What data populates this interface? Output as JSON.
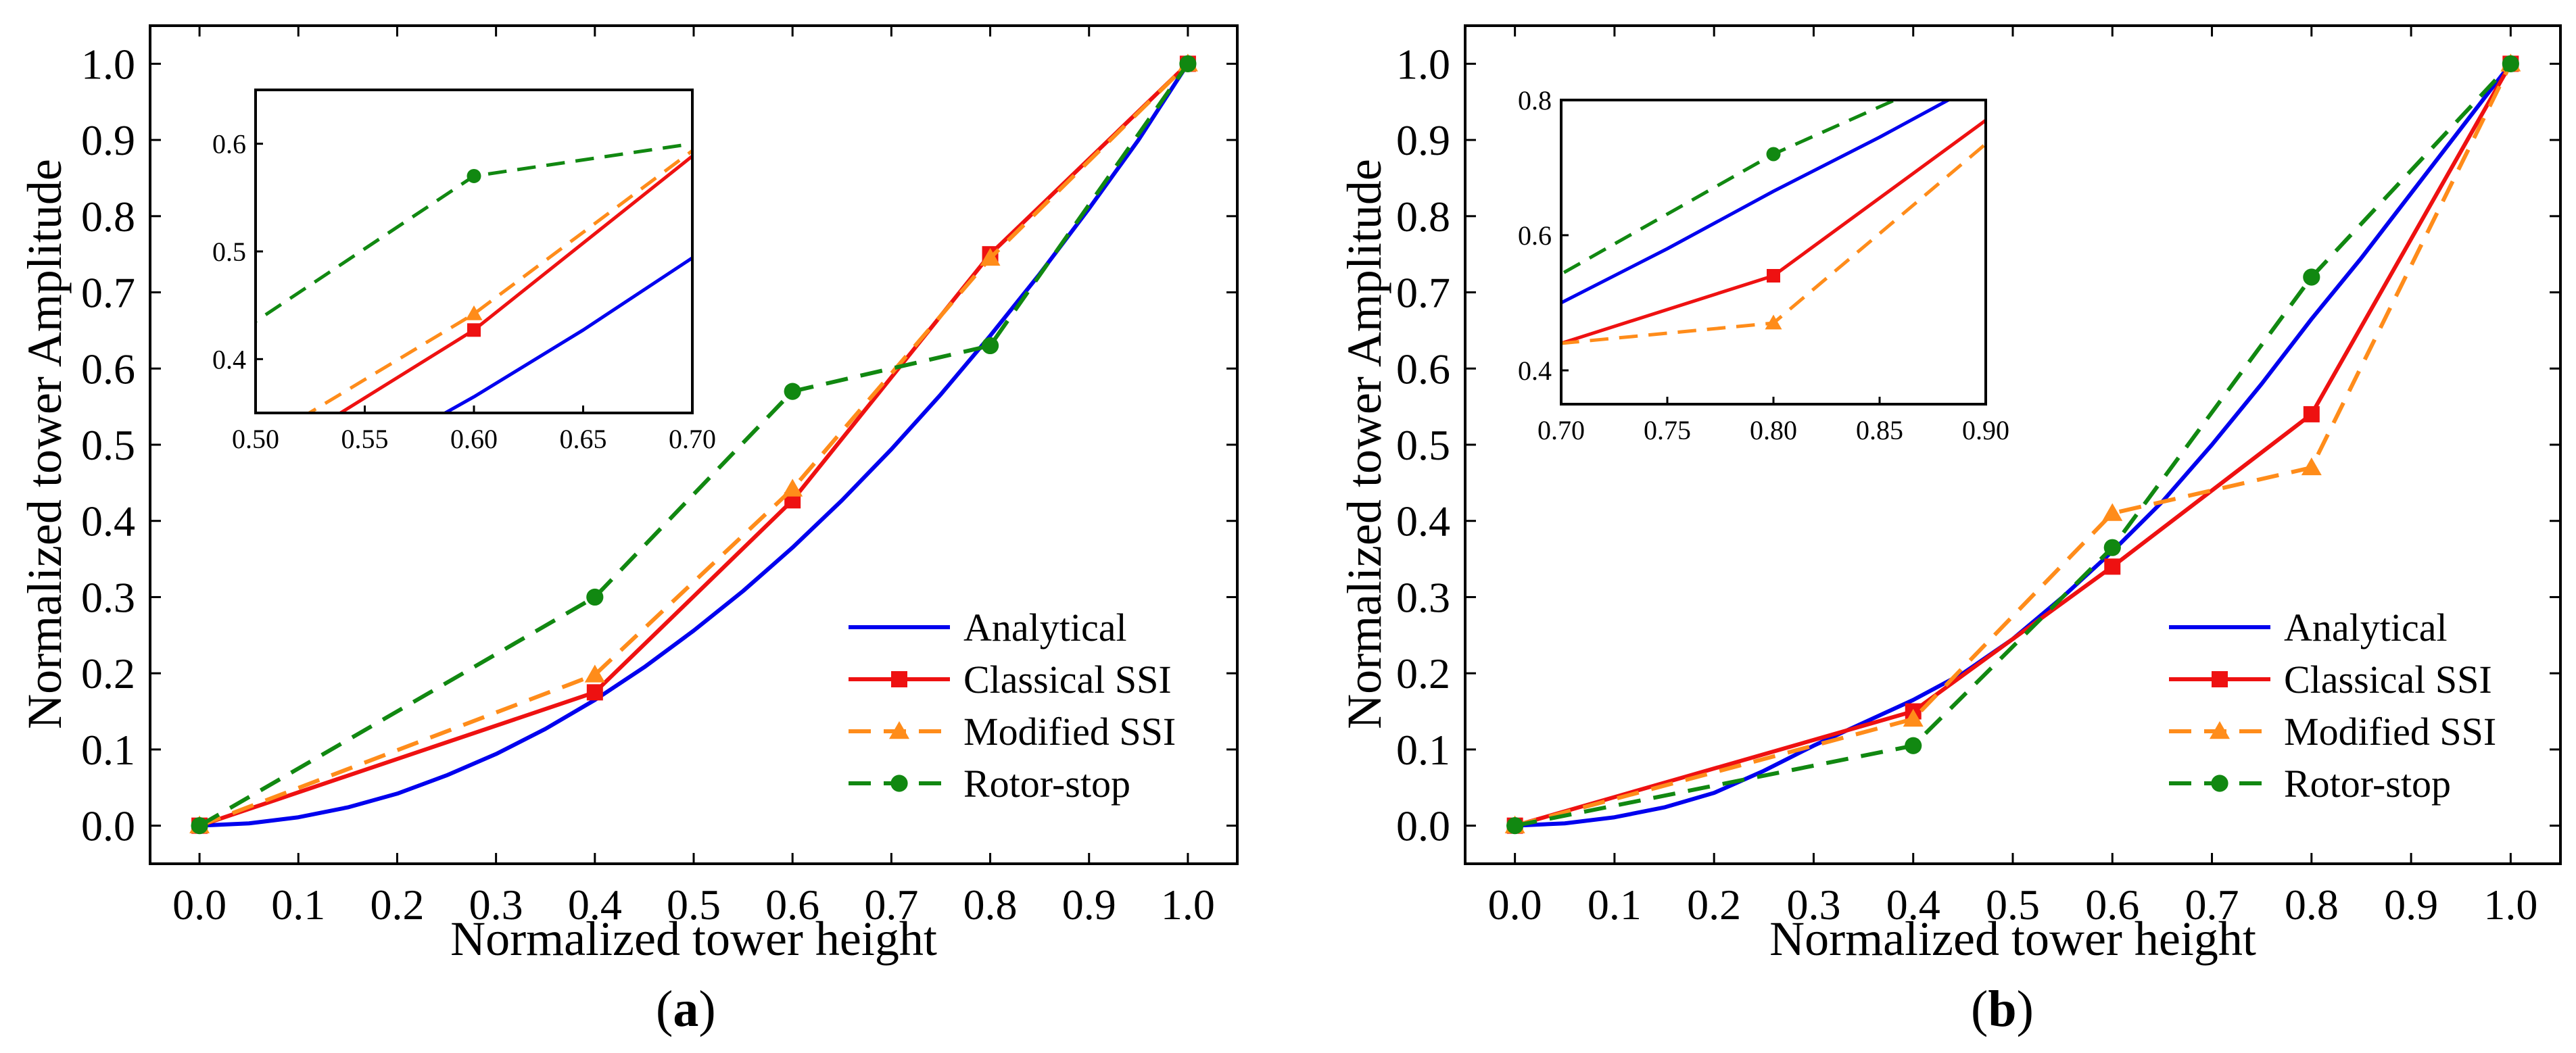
{
  "chart_data": [
    {
      "type": "line",
      "panel_label": "a",
      "xlabel": "Normalized tower height",
      "ylabel": "Normalized tower Amplitude",
      "xlim": [
        -0.05,
        1.05
      ],
      "ylim": [
        -0.05,
        1.05
      ],
      "xticks": [
        "0.0",
        "0.1",
        "0.2",
        "0.3",
        "0.4",
        "0.5",
        "0.6",
        "0.7",
        "0.8",
        "0.9",
        "1.0"
      ],
      "yticks": [
        "0.0",
        "0.1",
        "0.2",
        "0.3",
        "0.4",
        "0.5",
        "0.6",
        "0.7",
        "0.8",
        "0.9",
        "1.0"
      ],
      "legend_location": "lower-right",
      "series": [
        {
          "name": "Analytical",
          "color": "#0000ee",
          "dash": "solid",
          "marker": "none",
          "x": [
            0,
            0.05,
            0.1,
            0.15,
            0.2,
            0.25,
            0.3,
            0.35,
            0.4,
            0.45,
            0.5,
            0.55,
            0.6,
            0.65,
            0.7,
            0.75,
            0.8,
            0.85,
            0.9,
            0.95,
            1.0
          ],
          "y": [
            0,
            0.003,
            0.011,
            0.024,
            0.042,
            0.066,
            0.094,
            0.127,
            0.165,
            0.208,
            0.256,
            0.308,
            0.365,
            0.427,
            0.494,
            0.566,
            0.643,
            0.724,
            0.81,
            0.9,
            1.0
          ]
        },
        {
          "name": "Classical SSI",
          "color": "#ee1111",
          "dash": "solid",
          "marker": "square",
          "x": [
            0,
            0.4,
            0.6,
            0.8,
            1.0
          ],
          "y": [
            0,
            0.175,
            0.427,
            0.75,
            1.0
          ]
        },
        {
          "name": "Modified SSI",
          "color": "#ff8c1a",
          "dash": "dashed",
          "marker": "triangle",
          "x": [
            0,
            0.4,
            0.6,
            0.8,
            1.0
          ],
          "y": [
            0,
            0.198,
            0.442,
            0.745,
            1.0
          ]
        },
        {
          "name": "Rotor-stop",
          "color": "#118811",
          "dash": "dashed",
          "marker": "circle",
          "x": [
            0,
            0.4,
            0.6,
            0.8,
            1.0
          ],
          "y": [
            0,
            0.3,
            0.57,
            0.63,
            1.0
          ]
        }
      ],
      "inset": {
        "xlim": [
          0.5,
          0.7
        ],
        "ylim": [
          0.35,
          0.65
        ],
        "xticks": [
          "0.50",
          "0.55",
          "0.60",
          "0.65",
          "0.70"
        ],
        "yticks": [
          "0.4",
          "0.5",
          "0.6"
        ],
        "ytick_values": [
          0.4,
          0.5,
          0.6
        ]
      }
    },
    {
      "type": "line",
      "panel_label": "b",
      "xlabel": "Normalized tower height",
      "ylabel": "Normalized tower Amplitude",
      "xlim": [
        -0.05,
        1.05
      ],
      "ylim": [
        -0.05,
        1.05
      ],
      "xticks": [
        "0.0",
        "0.1",
        "0.2",
        "0.3",
        "0.4",
        "0.5",
        "0.6",
        "0.7",
        "0.8",
        "0.9",
        "1.0"
      ],
      "yticks": [
        "0.0",
        "0.1",
        "0.2",
        "0.3",
        "0.4",
        "0.5",
        "0.6",
        "0.7",
        "0.8",
        "0.9",
        "1.0"
      ],
      "legend_location": "lower-right",
      "series": [
        {
          "name": "Analytical",
          "color": "#0000ee",
          "dash": "solid",
          "marker": "none",
          "x": [
            0,
            0.05,
            0.1,
            0.15,
            0.2,
            0.25,
            0.3,
            0.35,
            0.4,
            0.45,
            0.5,
            0.55,
            0.6,
            0.65,
            0.7,
            0.75,
            0.8,
            0.85,
            0.9,
            0.95,
            1.0
          ],
          "y": [
            0,
            0.003,
            0.011,
            0.024,
            0.043,
            0.072,
            0.105,
            0.135,
            0.165,
            0.2,
            0.245,
            0.3,
            0.36,
            0.425,
            0.5,
            0.58,
            0.665,
            0.745,
            0.83,
            0.915,
            1.0
          ]
        },
        {
          "name": "Classical SSI",
          "color": "#ee1111",
          "dash": "solid",
          "marker": "square",
          "x": [
            0,
            0.4,
            0.6,
            0.8,
            1.0
          ],
          "y": [
            0,
            0.15,
            0.34,
            0.54,
            1.0
          ]
        },
        {
          "name": "Modified SSI",
          "color": "#ff8c1a",
          "dash": "dashed",
          "marker": "triangle",
          "x": [
            0,
            0.4,
            0.6,
            0.8,
            1.0
          ],
          "y": [
            0,
            0.14,
            0.41,
            0.47,
            1.0
          ]
        },
        {
          "name": "Rotor-stop",
          "color": "#118811",
          "dash": "dashed",
          "marker": "circle",
          "x": [
            0,
            0.4,
            0.6,
            0.8,
            1.0
          ],
          "y": [
            0,
            0.105,
            0.365,
            0.72,
            1.0
          ]
        }
      ],
      "inset": {
        "xlim": [
          0.7,
          0.9
        ],
        "ylim": [
          0.35,
          0.8
        ],
        "xticks": [
          "0.70",
          "0.75",
          "0.80",
          "0.85",
          "0.90"
        ],
        "yticks": [
          "0.4",
          "0.6",
          "0.8"
        ],
        "ytick_values": [
          0.4,
          0.6,
          0.8
        ]
      }
    }
  ]
}
